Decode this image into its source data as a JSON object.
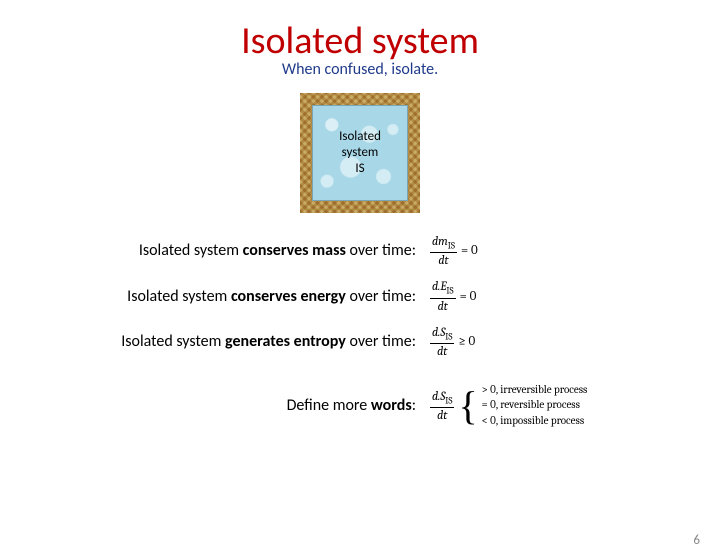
{
  "title": "Isolated system",
  "subtitle": "When confused, isolate.",
  "diagram": {
    "line1": "Isolated",
    "line2": "system",
    "line3": "IS"
  },
  "rows": [
    {
      "pre": "Isolated system ",
      "bold": "conserves mass",
      "post": " over time:",
      "eq": {
        "d": "d",
        "var": "m",
        "sub": "IS",
        "den": "dt",
        "rel": "= 0"
      }
    },
    {
      "pre": "Isolated system ",
      "bold": "conserves energy",
      "post": " over time:",
      "eq": {
        "d": "d.",
        "var": "E",
        "sub": "IS",
        "den": "dt",
        "rel": "= 0"
      }
    },
    {
      "pre": "Isolated system ",
      "bold": "generates entropy",
      "post": " over time:",
      "eq": {
        "d": "d.",
        "var": "S",
        "sub": "IS",
        "den": "dt",
        "rel": "≥ 0"
      }
    }
  ],
  "define": {
    "pre": "Define more ",
    "bold": "words",
    "post": ":",
    "eq": {
      "d": "d.",
      "var": "S",
      "sub": "IS",
      "den": "dt"
    },
    "cases": [
      "> 0,  irreversible process",
      "= 0,   reversible process",
      "< 0,  impossible process"
    ]
  },
  "pagenum": "6",
  "colors": {
    "title": "#c00000",
    "subtitle": "#1f3a8a",
    "text": "#000000",
    "pagenum": "#888888",
    "background": "#ffffff"
  }
}
